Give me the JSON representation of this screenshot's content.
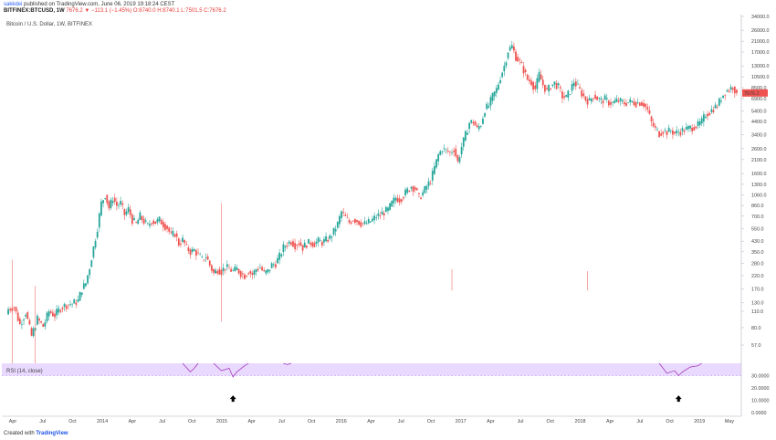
{
  "header": {
    "user": "sakkdei",
    "published": "published on TradingView.com, June 06, 2019 19:18:24 CEST",
    "symbol": "BITFINEX:BTCUSD, 1W",
    "last": "7676.2",
    "change": "▼ −113.1 (−1.45%)",
    "ohlc": "O:8740.0 H:8740.1 L:7501.5 C:7676.2"
  },
  "chart_title": "Bitcoin / U.S. Dollar, 1W, BITFINEX",
  "rsi_title": "RSI (14, close)",
  "footer": {
    "prefix": "Created with",
    "brand": "TradingView"
  },
  "colors": {
    "up": "#26a69a",
    "down": "#ef5350",
    "rsi_band": "#e9d9ff",
    "rsi_line": "#9c27b0",
    "last_price": "#ef5350"
  },
  "chart_data": [
    {
      "type": "candlestick",
      "title": "Bitcoin / U.S. Dollar, 1W, BITFINEX",
      "scale": "log",
      "ylim": [
        40,
        34000
      ],
      "y_ticks": [
        "34000.0",
        "26000.0",
        "21000.0",
        "17000.0",
        "13000.0",
        "10500.0",
        "8500.0",
        "6900.0",
        "5400.0",
        "4400.0",
        "3400.0",
        "2600.0",
        "2100.0",
        "1600.0",
        "1300.0",
        "1060.0",
        "860.0",
        "700.0",
        "550.0",
        "430.0",
        "350.0",
        "280.0",
        "220.0",
        "170.0",
        "130.0",
        "110.0",
        "80.0",
        "57.0"
      ],
      "x_ticks": [
        "Apr",
        "Jul",
        "Oct",
        "2014",
        "Apr",
        "Jul",
        "Oct",
        "2015",
        "Apr",
        "Jul",
        "Oct",
        "2016",
        "Apr",
        "Jul",
        "Oct",
        "2017",
        "Apr",
        "Jul",
        "Oct",
        "2018",
        "Apr",
        "Jul",
        "Oct",
        "2019",
        "May"
      ],
      "last_price": "7676.2",
      "path_points": [
        [
          0,
          115
        ],
        [
          3,
          120
        ],
        [
          6,
          85
        ],
        [
          9,
          108
        ],
        [
          12,
          68
        ],
        [
          15,
          95
        ],
        [
          18,
          82
        ],
        [
          21,
          110
        ],
        [
          24,
          102
        ],
        [
          27,
          118
        ],
        [
          30,
          125
        ],
        [
          33,
          128
        ],
        [
          36,
          135
        ],
        [
          38,
          170
        ],
        [
          40,
          190
        ],
        [
          42,
          260
        ],
        [
          44,
          380
        ],
        [
          46,
          560
        ],
        [
          48,
          900
        ],
        [
          50,
          1060
        ],
        [
          52,
          820
        ],
        [
          54,
          1000
        ],
        [
          56,
          860
        ],
        [
          58,
          900
        ],
        [
          60,
          720
        ],
        [
          62,
          800
        ],
        [
          64,
          650
        ],
        [
          66,
          600
        ],
        [
          68,
          700
        ],
        [
          70,
          630
        ],
        [
          72,
          580
        ],
        [
          74,
          640
        ],
        [
          76,
          620
        ],
        [
          78,
          650
        ],
        [
          80,
          600
        ],
        [
          82,
          560
        ],
        [
          84,
          480
        ],
        [
          86,
          500
        ],
        [
          88,
          410
        ],
        [
          90,
          440
        ],
        [
          92,
          380
        ],
        [
          94,
          350
        ],
        [
          96,
          360
        ],
        [
          98,
          330
        ],
        [
          100,
          300
        ],
        [
          102,
          320
        ],
        [
          104,
          270
        ],
        [
          106,
          230
        ],
        [
          108,
          250
        ],
        [
          110,
          240
        ],
        [
          112,
          260
        ],
        [
          114,
          250
        ],
        [
          116,
          240
        ],
        [
          118,
          250
        ],
        [
          120,
          230
        ],
        [
          122,
          220
        ],
        [
          124,
          240
        ],
        [
          126,
          225
        ],
        [
          128,
          250
        ],
        [
          130,
          260
        ],
        [
          132,
          230
        ],
        [
          134,
          240
        ],
        [
          136,
          270
        ],
        [
          138,
          280
        ],
        [
          140,
          320
        ],
        [
          142,
          380
        ],
        [
          144,
          410
        ],
        [
          146,
          430
        ],
        [
          148,
          400
        ],
        [
          150,
          420
        ],
        [
          152,
          380
        ],
        [
          154,
          410
        ],
        [
          156,
          420
        ],
        [
          158,
          410
        ],
        [
          160,
          430
        ],
        [
          162,
          420
        ],
        [
          164,
          440
        ],
        [
          166,
          460
        ],
        [
          168,
          520
        ],
        [
          170,
          600
        ],
        [
          172,
          760
        ],
        [
          174,
          680
        ],
        [
          176,
          620
        ],
        [
          178,
          660
        ],
        [
          180,
          640
        ],
        [
          182,
          610
        ],
        [
          184,
          600
        ],
        [
          186,
          620
        ],
        [
          188,
          650
        ],
        [
          190,
          700
        ],
        [
          192,
          720
        ],
        [
          194,
          760
        ],
        [
          196,
          790
        ],
        [
          198,
          900
        ],
        [
          200,
          1000
        ],
        [
          202,
          970
        ],
        [
          204,
          1050
        ],
        [
          206,
          1150
        ],
        [
          208,
          1250
        ],
        [
          210,
          1200
        ],
        [
          212,
          1000
        ],
        [
          214,
          1100
        ],
        [
          216,
          1250
        ],
        [
          218,
          1400
        ],
        [
          220,
          1800
        ],
        [
          222,
          2300
        ],
        [
          224,
          2600
        ],
        [
          226,
          2500
        ],
        [
          228,
          2400
        ],
        [
          230,
          2600
        ],
        [
          232,
          2000
        ],
        [
          234,
          2700
        ],
        [
          236,
          3400
        ],
        [
          238,
          4300
        ],
        [
          240,
          4400
        ],
        [
          242,
          3800
        ],
        [
          244,
          4200
        ],
        [
          246,
          5600
        ],
        [
          248,
          6000
        ],
        [
          250,
          7200
        ],
        [
          252,
          8200
        ],
        [
          254,
          10500
        ],
        [
          256,
          13000
        ],
        [
          258,
          17500
        ],
        [
          260,
          19000
        ],
        [
          262,
          15500
        ],
        [
          264,
          14000
        ],
        [
          266,
          12000
        ],
        [
          268,
          10000
        ],
        [
          270,
          9500
        ],
        [
          272,
          8300
        ],
        [
          274,
          11000
        ],
        [
          276,
          9000
        ],
        [
          278,
          7900
        ],
        [
          280,
          8800
        ],
        [
          282,
          9300
        ],
        [
          284,
          8600
        ],
        [
          286,
          7200
        ],
        [
          288,
          7000
        ],
        [
          290,
          8000
        ],
        [
          292,
          9600
        ],
        [
          294,
          8600
        ],
        [
          296,
          7600
        ],
        [
          298,
          6800
        ],
        [
          300,
          6500
        ],
        [
          302,
          7400
        ],
        [
          304,
          6900
        ],
        [
          306,
          6600
        ],
        [
          308,
          6800
        ],
        [
          310,
          6400
        ],
        [
          312,
          6300
        ],
        [
          314,
          6600
        ],
        [
          316,
          6500
        ],
        [
          318,
          6300
        ],
        [
          320,
          6400
        ],
        [
          322,
          6500
        ],
        [
          324,
          6300
        ],
        [
          326,
          6400
        ],
        [
          328,
          6200
        ],
        [
          330,
          5500
        ],
        [
          332,
          4300
        ],
        [
          334,
          3800
        ],
        [
          336,
          3500
        ],
        [
          338,
          3700
        ],
        [
          340,
          3600
        ],
        [
          342,
          3700
        ],
        [
          344,
          3500
        ],
        [
          346,
          3600
        ],
        [
          348,
          3700
        ],
        [
          350,
          3800
        ],
        [
          352,
          3900
        ],
        [
          354,
          4000
        ],
        [
          356,
          4100
        ],
        [
          358,
          4400
        ],
        [
          360,
          5100
        ],
        [
          362,
          5300
        ],
        [
          364,
          5700
        ],
        [
          366,
          6000
        ],
        [
          368,
          7000
        ],
        [
          370,
          7900
        ],
        [
          372,
          8200
        ],
        [
          374,
          8700
        ],
        [
          376,
          7676
        ]
      ]
    },
    {
      "type": "line",
      "title": "RSI (14, close)",
      "ylim": [
        0,
        40
      ],
      "y_ticks": [
        "30.0000",
        "20.0000",
        "10.0000",
        "0.0000"
      ],
      "band": [
        30,
        40
      ],
      "segments": [
        [
          [
            90,
            40
          ],
          [
            94,
            33
          ],
          [
            96,
            36
          ],
          [
            98,
            40
          ]
        ],
        [
          [
            106,
            40
          ],
          [
            110,
            34
          ],
          [
            114,
            36
          ],
          [
            116,
            29
          ],
          [
            118,
            33
          ],
          [
            122,
            38
          ],
          [
            124,
            40
          ]
        ],
        [
          [
            142,
            40
          ],
          [
            144,
            39
          ],
          [
            146,
            40
          ]
        ],
        [
          [
            336,
            40
          ],
          [
            340,
            32
          ],
          [
            344,
            34
          ],
          [
            346,
            30
          ],
          [
            348,
            33
          ],
          [
            352,
            37
          ],
          [
            356,
            38
          ],
          [
            358,
            40
          ]
        ]
      ]
    }
  ]
}
